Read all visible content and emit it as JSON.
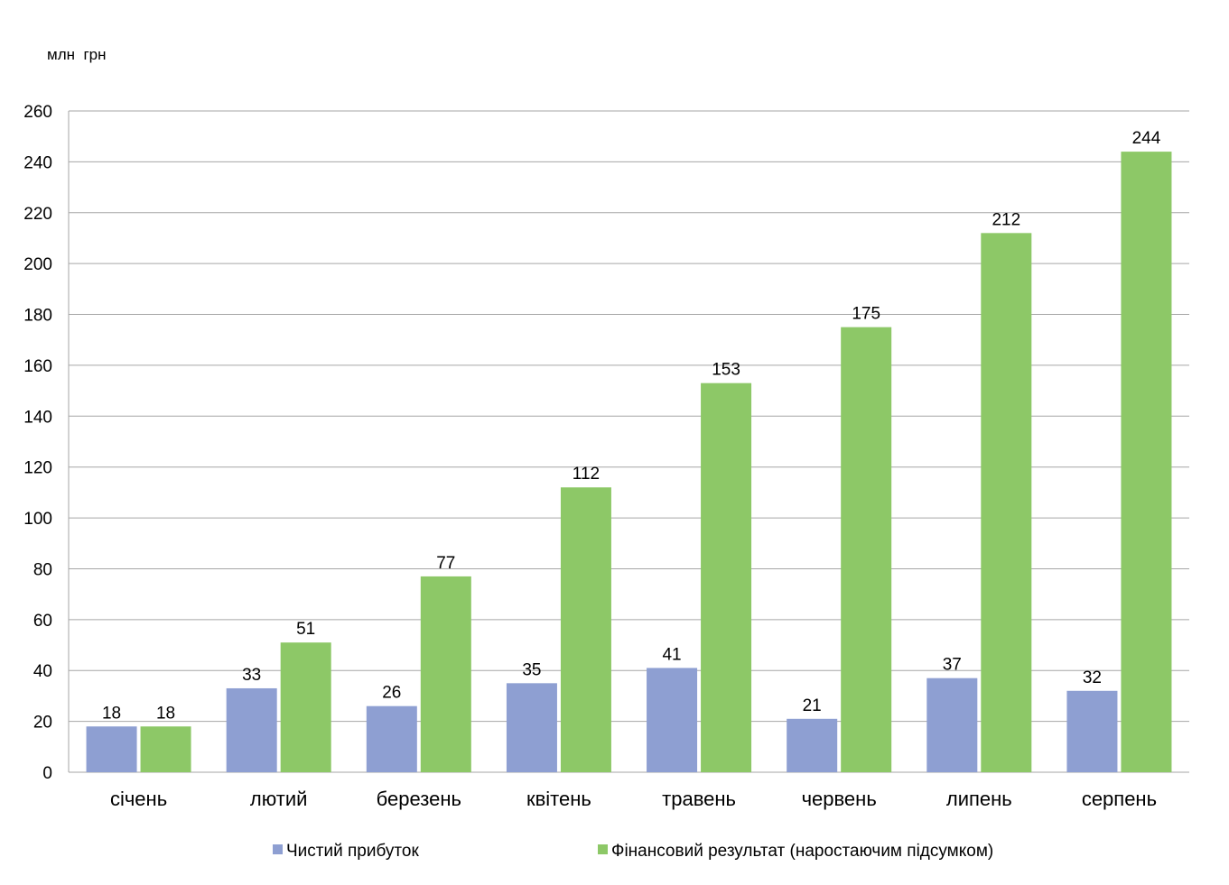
{
  "chart_data": {
    "type": "bar",
    "unit_label": "млн  грн",
    "categories": [
      "січень",
      "лютий",
      "березень",
      "квітень",
      "травень",
      "червень",
      "липень",
      "серпень"
    ],
    "series": [
      {
        "name": "Чистий прибуток",
        "color": "#8e9fd2",
        "values": [
          18,
          33,
          26,
          35,
          41,
          21,
          37,
          32
        ]
      },
      {
        "name": "Фінансовий результат (наростаючим підсумком)",
        "color": "#8dc867",
        "values": [
          18,
          51,
          77,
          112,
          153,
          175,
          212,
          244
        ]
      }
    ],
    "ylim": [
      0,
      260
    ],
    "yticks": [
      0,
      20,
      40,
      60,
      80,
      100,
      120,
      140,
      160,
      180,
      200,
      220,
      240,
      260
    ],
    "grid": true,
    "legend_position": "bottom"
  }
}
